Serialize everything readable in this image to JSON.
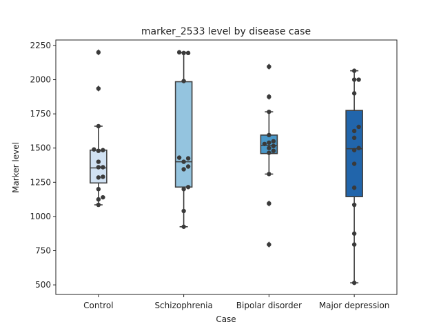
{
  "chart_data": {
    "type": "box",
    "title": "marker_2533 level by disease case",
    "xlabel": "Case",
    "ylabel": "Marker level",
    "ylim": [
      430,
      2290
    ],
    "yticks": [
      500,
      750,
      1000,
      1250,
      1500,
      1750,
      2000,
      2250
    ],
    "grid": false,
    "categories": [
      "Control",
      "Schizophrenia",
      "Bipolar disorder",
      "Major depression"
    ],
    "colors": [
      "#d0e1f2",
      "#94c4df",
      "#4a98c9",
      "#2165ab"
    ],
    "boxes": [
      {
        "q1": 1245,
        "median": 1355,
        "q3": 1485,
        "whisker_low": 1085,
        "whisker_high": 1660,
        "outliers": [
          1935,
          2200
        ]
      },
      {
        "q1": 1215,
        "median": 1400,
        "q3": 1985,
        "whisker_low": 925,
        "whisker_high": 2200,
        "outliers": []
      },
      {
        "q1": 1460,
        "median": 1520,
        "q3": 1595,
        "whisker_low": 1310,
        "whisker_high": 1765,
        "outliers": [
          795,
          1095,
          1875,
          2095
        ]
      },
      {
        "q1": 1145,
        "median": 1495,
        "q3": 1775,
        "whisker_low": 515,
        "whisker_high": 2065,
        "outliers": []
      }
    ],
    "points": [
      [
        1085,
        1125,
        1140,
        1200,
        1285,
        1290,
        1360,
        1360,
        1400,
        1480,
        1485,
        1490,
        1660,
        1935,
        2200
      ],
      [
        925,
        1040,
        1200,
        1215,
        1345,
        1365,
        1400,
        1425,
        1430,
        1990,
        2195,
        2195,
        2200
      ],
      [
        795,
        1095,
        1310,
        1465,
        1480,
        1500,
        1515,
        1530,
        1540,
        1550,
        1595,
        1765,
        1875,
        2095
      ],
      [
        515,
        795,
        875,
        1085,
        1210,
        1385,
        1485,
        1500,
        1575,
        1625,
        1655,
        1900,
        2000,
        2000,
        2065
      ]
    ]
  }
}
